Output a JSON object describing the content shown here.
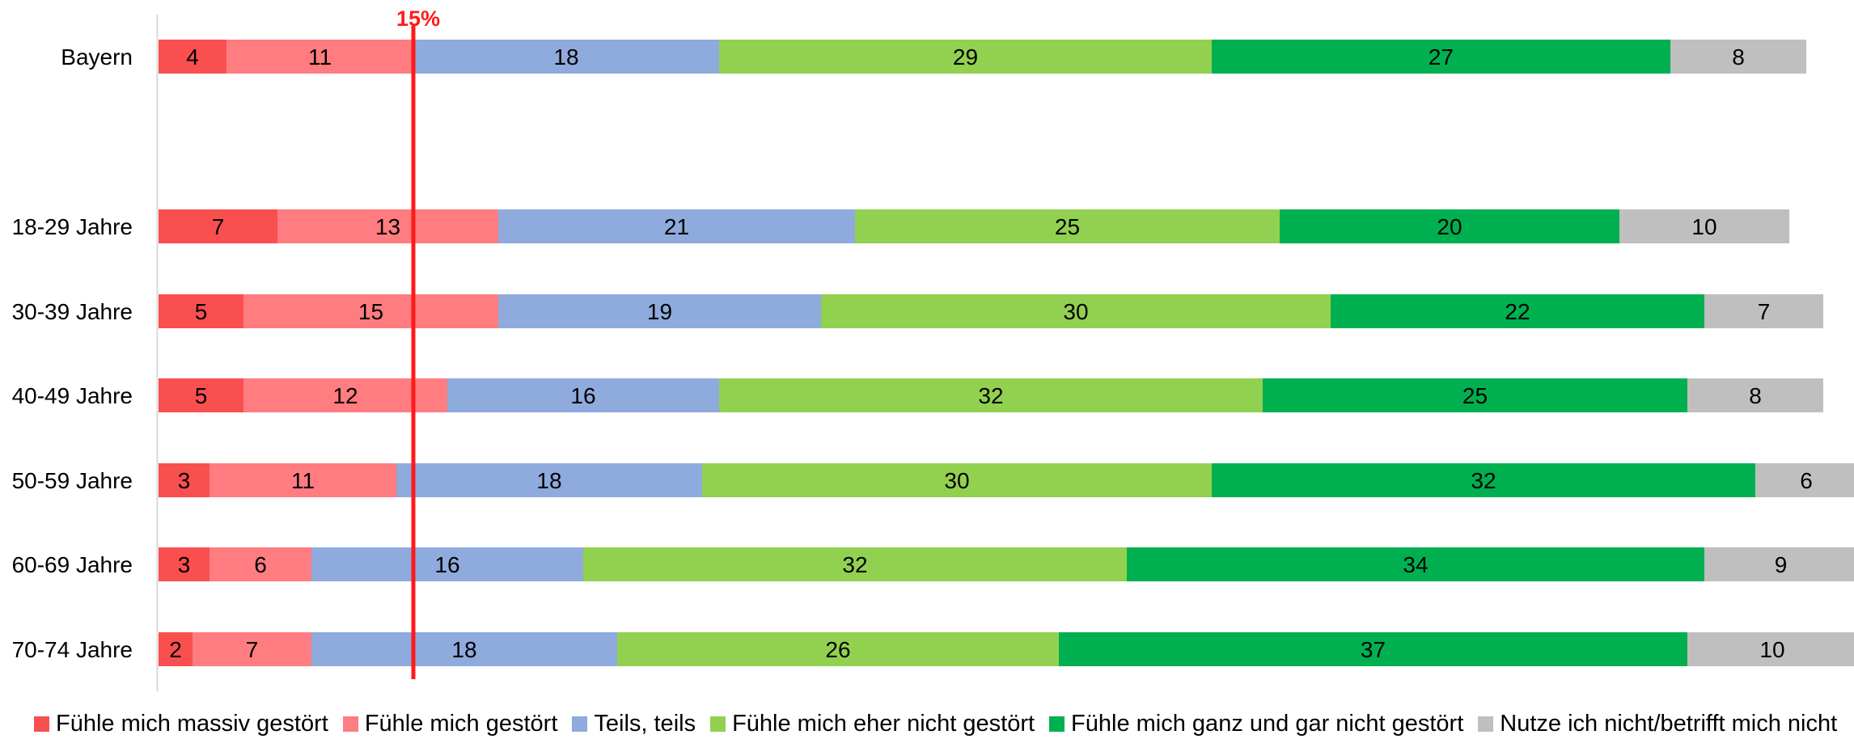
{
  "chart_data": {
    "type": "bar",
    "orientation": "horizontal",
    "stacked": true,
    "categories": [
      "Bayern",
      "18-29 Jahre",
      "30-39 Jahre",
      "40-49 Jahre",
      "50-59 Jahre",
      "60-69 Jahre",
      "70-74 Jahre"
    ],
    "series": [
      {
        "name": "Fühle mich massiv gestört",
        "color": "#f94f4f",
        "values": [
          4,
          7,
          5,
          5,
          3,
          3,
          2
        ]
      },
      {
        "name": "Fühle mich gestört",
        "color": "#ff7c80",
        "values": [
          11,
          13,
          15,
          12,
          11,
          6,
          7
        ]
      },
      {
        "name": "Teils, teils",
        "color": "#8faadc",
        "values": [
          18,
          21,
          19,
          16,
          18,
          16,
          18
        ]
      },
      {
        "name": "Fühle mich eher nicht gestört",
        "color": "#92d050",
        "values": [
          29,
          25,
          30,
          32,
          30,
          32,
          26
        ]
      },
      {
        "name": "Fühle mich ganz und gar nicht gestört",
        "color": "#00b050",
        "values": [
          27,
          20,
          22,
          25,
          32,
          34,
          37
        ]
      },
      {
        "name": "Nutze ich nicht/betrifft mich nicht",
        "color": "#bfbfbf",
        "values": [
          8,
          10,
          7,
          8,
          6,
          9,
          10
        ]
      }
    ],
    "reference_line": {
      "value": 15,
      "label": "15%",
      "color": "#ff1a1a"
    },
    "xlim": [
      0,
      100
    ],
    "grid": false,
    "legend_position": "bottom"
  }
}
